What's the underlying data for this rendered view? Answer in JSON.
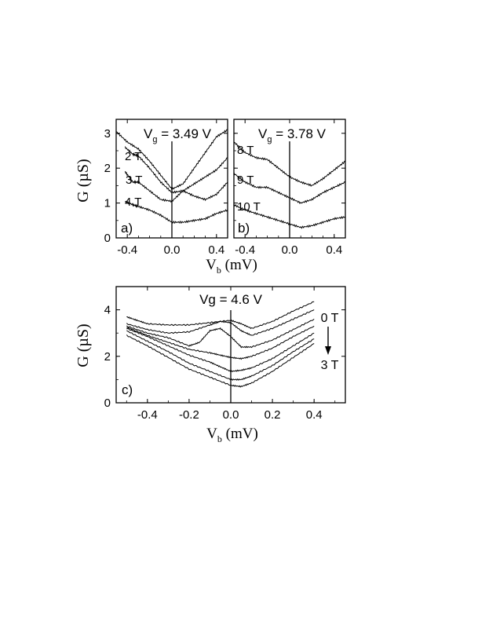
{
  "figure": {
    "top_ylabel": "G (µS)",
    "top_xlabel": "V_b (mV)",
    "bottom_ylabel": "G (µS)",
    "bottom_xlabel": "V_b (mV)",
    "bottom_arrow_top": "0 T",
    "bottom_arrow_bottom": "3 T"
  },
  "chart_data": [
    {
      "panel": "a)",
      "type": "line",
      "title": "V_g = 3.49 V",
      "xlabel": "V_b (mV)",
      "ylabel": "G (µS)",
      "xlim": [
        -0.5,
        0.5
      ],
      "ylim": [
        0,
        3.4
      ],
      "xticks": [
        -0.4,
        0.0,
        0.4
      ],
      "xtick_labels": [
        "-0.4",
        "0.0",
        "0.4"
      ],
      "yticks": [
        0,
        1,
        2,
        3
      ],
      "ytick_labels": [
        "0",
        "1",
        "2",
        "3"
      ],
      "vline": 0.0,
      "series": [
        {
          "name": "",
          "x": [
            -0.5,
            -0.4,
            -0.3,
            -0.2,
            -0.1,
            0.0,
            0.1,
            0.2,
            0.3,
            0.4,
            0.5
          ],
          "values": [
            3.05,
            2.75,
            2.55,
            2.2,
            1.8,
            1.4,
            1.55,
            2.0,
            2.45,
            2.9,
            3.1
          ]
        },
        {
          "name": "2 T",
          "x": [
            -0.42,
            -0.35,
            -0.3,
            -0.2,
            -0.1,
            0.0,
            0.1,
            0.2,
            0.3,
            0.4,
            0.5
          ],
          "values": [
            2.6,
            2.4,
            2.35,
            2.0,
            1.6,
            1.3,
            1.35,
            1.55,
            1.75,
            1.95,
            2.3
          ]
        },
        {
          "name": "3 T",
          "x": [
            -0.42,
            -0.35,
            -0.3,
            -0.2,
            -0.1,
            0.0,
            0.1,
            0.2,
            0.3,
            0.4,
            0.5
          ],
          "values": [
            1.9,
            1.6,
            1.6,
            1.35,
            1.1,
            1.05,
            1.35,
            1.2,
            1.1,
            1.25,
            1.6
          ]
        },
        {
          "name": "4 T",
          "x": [
            -0.42,
            -0.35,
            -0.3,
            -0.2,
            -0.1,
            0.0,
            0.1,
            0.2,
            0.3,
            0.4,
            0.5
          ],
          "values": [
            1.05,
            0.95,
            0.9,
            0.8,
            0.65,
            0.45,
            0.45,
            0.5,
            0.55,
            0.7,
            0.8
          ]
        }
      ]
    },
    {
      "panel": "b)",
      "type": "line",
      "title": "V_g = 3.78 V",
      "xlabel": "V_b (mV)",
      "ylabel": "G (µS)",
      "xlim": [
        -0.5,
        0.5
      ],
      "ylim": [
        0,
        3.4
      ],
      "xticks": [
        -0.4,
        0.0,
        0.4
      ],
      "xtick_labels": [
        "-0.4",
        "0.0",
        "0.4"
      ],
      "yticks": [
        0,
        1,
        2,
        3
      ],
      "ytick_labels": [],
      "vline": 0.0,
      "series": [
        {
          "name": "8 T",
          "x": [
            -0.5,
            -0.4,
            -0.3,
            -0.2,
            -0.1,
            0.0,
            0.1,
            0.2,
            0.3,
            0.4,
            0.5
          ],
          "values": [
            2.75,
            2.45,
            2.3,
            2.25,
            2.0,
            1.75,
            1.6,
            1.5,
            1.7,
            1.95,
            2.2
          ]
        },
        {
          "name": "9 T",
          "x": [
            -0.5,
            -0.4,
            -0.3,
            -0.2,
            -0.1,
            0.0,
            0.1,
            0.2,
            0.3,
            0.4,
            0.5
          ],
          "values": [
            1.85,
            1.6,
            1.45,
            1.45,
            1.3,
            1.15,
            1.0,
            1.1,
            1.3,
            1.45,
            1.6
          ]
        },
        {
          "name": "10 T",
          "x": [
            -0.5,
            -0.4,
            -0.3,
            -0.2,
            -0.1,
            0.0,
            0.1,
            0.2,
            0.3,
            0.4,
            0.5
          ],
          "values": [
            0.95,
            0.8,
            0.7,
            0.6,
            0.5,
            0.4,
            0.3,
            0.35,
            0.45,
            0.55,
            0.6
          ]
        }
      ]
    },
    {
      "panel": "c)",
      "type": "line",
      "title": "Vg = 4.6 V",
      "xlabel": "V_b (mV)",
      "ylabel": "G (µS)",
      "xlim": [
        -0.55,
        0.55
      ],
      "ylim": [
        0,
        5
      ],
      "xticks": [
        -0.4,
        -0.2,
        0.0,
        0.2,
        0.4
      ],
      "xtick_labels": [
        "-0.4",
        "-0.2",
        "0.0",
        "0.2",
        "0.4"
      ],
      "yticks": [
        0,
        2,
        4
      ],
      "ytick_labels": [
        "0",
        "2",
        "4"
      ],
      "vline": 0.0,
      "series": [
        {
          "name": "0 T",
          "x": [
            -0.5,
            -0.45,
            -0.4,
            -0.3,
            -0.2,
            -0.1,
            0.0,
            0.05,
            0.1,
            0.2,
            0.3,
            0.4
          ],
          "values": [
            3.7,
            3.55,
            3.4,
            3.35,
            3.35,
            3.45,
            3.55,
            3.4,
            3.2,
            3.5,
            3.95,
            4.35
          ]
        },
        {
          "name": "",
          "x": [
            -0.5,
            -0.4,
            -0.3,
            -0.2,
            -0.1,
            -0.05,
            0.0,
            0.05,
            0.1,
            0.2,
            0.3,
            0.4
          ],
          "values": [
            3.4,
            3.15,
            3.0,
            3.05,
            3.35,
            3.5,
            3.45,
            3.1,
            2.9,
            3.2,
            3.6,
            4.0
          ]
        },
        {
          "name": "",
          "x": [
            -0.5,
            -0.4,
            -0.3,
            -0.2,
            -0.15,
            -0.1,
            -0.05,
            0.0,
            0.05,
            0.1,
            0.2,
            0.3,
            0.4
          ],
          "values": [
            3.3,
            3.0,
            2.8,
            2.45,
            2.6,
            3.1,
            3.2,
            2.85,
            2.4,
            2.4,
            2.7,
            3.15,
            3.6
          ]
        },
        {
          "name": "",
          "x": [
            -0.5,
            -0.4,
            -0.3,
            -0.2,
            -0.1,
            -0.05,
            0.0,
            0.05,
            0.1,
            0.2,
            0.3,
            0.4
          ],
          "values": [
            3.25,
            2.9,
            2.6,
            2.3,
            2.15,
            2.05,
            1.95,
            1.9,
            2.0,
            2.35,
            2.85,
            3.3
          ]
        },
        {
          "name": "",
          "x": [
            -0.5,
            -0.4,
            -0.3,
            -0.2,
            -0.1,
            -0.05,
            0.0,
            0.05,
            0.1,
            0.2,
            0.3,
            0.4
          ],
          "values": [
            3.2,
            2.85,
            2.45,
            2.05,
            1.75,
            1.55,
            1.35,
            1.4,
            1.5,
            1.9,
            2.45,
            3.0
          ]
        },
        {
          "name": "",
          "x": [
            -0.5,
            -0.4,
            -0.3,
            -0.2,
            -0.1,
            0.0,
            0.05,
            0.1,
            0.2,
            0.3,
            0.4
          ],
          "values": [
            3.1,
            2.65,
            2.2,
            1.7,
            1.35,
            1.0,
            1.0,
            1.15,
            1.6,
            2.2,
            2.75
          ]
        },
        {
          "name": "3 T",
          "x": [
            -0.5,
            -0.4,
            -0.3,
            -0.2,
            -0.1,
            0.0,
            0.05,
            0.1,
            0.2,
            0.3,
            0.4
          ],
          "values": [
            2.9,
            2.45,
            1.95,
            1.45,
            1.1,
            0.75,
            0.7,
            0.85,
            1.35,
            1.95,
            2.55
          ]
        }
      ]
    }
  ]
}
